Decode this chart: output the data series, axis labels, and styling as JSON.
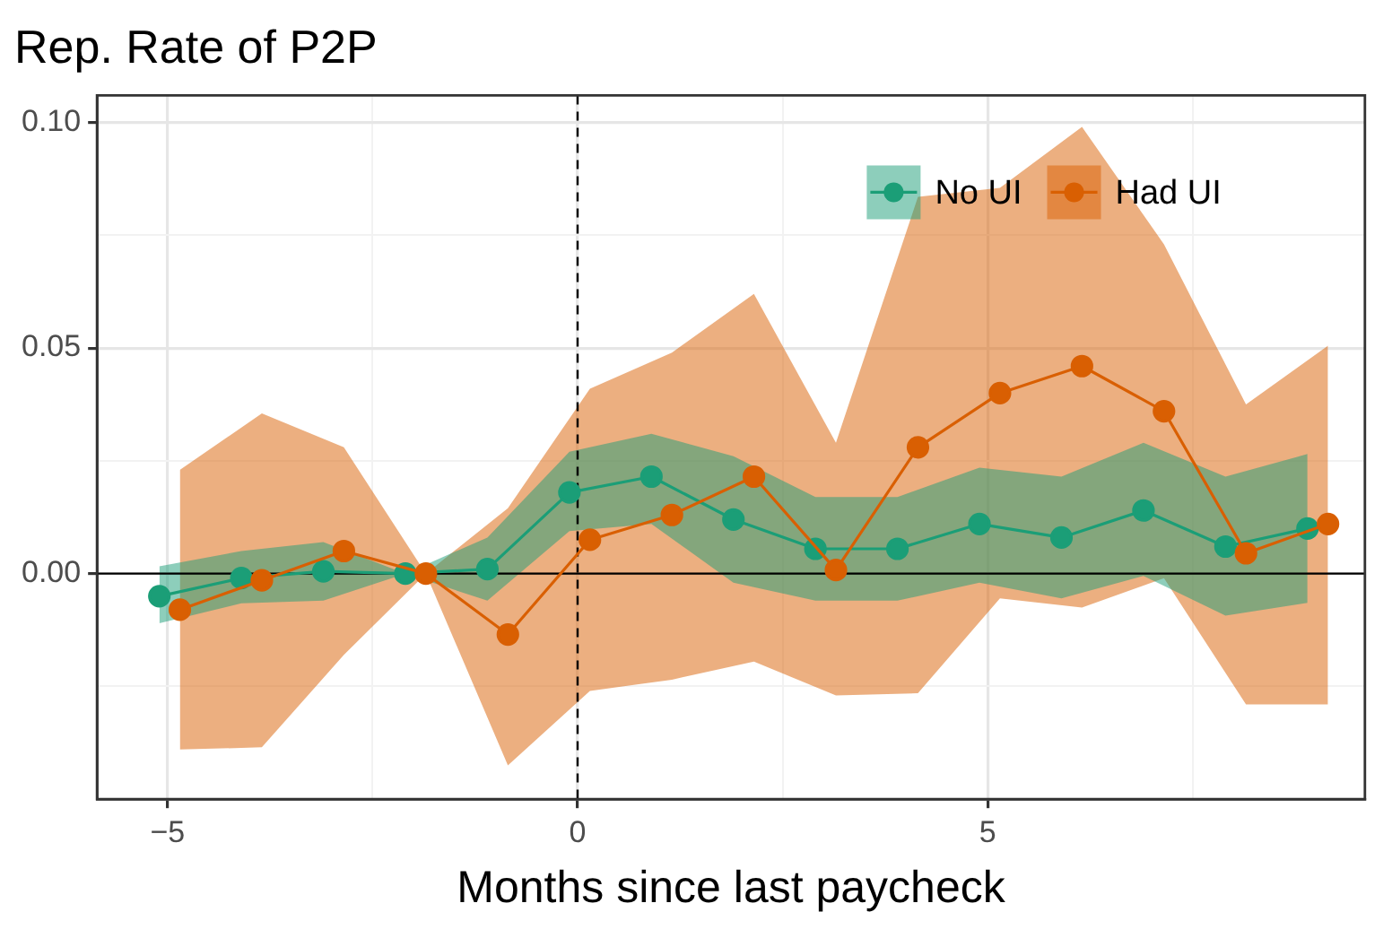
{
  "chart_data": {
    "type": "line",
    "title": "Rep. Rate of P2P",
    "xlabel": "Months since last paycheck",
    "xlim": [
      -5.86,
      9.6
    ],
    "ylim": [
      -0.05,
      0.106
    ],
    "xticks": [
      {
        "value": -5,
        "label": "−5"
      },
      {
        "value": -2.5,
        "label": null
      },
      0,
      {
        "value": 2.5,
        "label": null
      },
      5,
      {
        "value": 7.5,
        "label": null
      }
    ],
    "yticks": [
      {
        "value": -0.025,
        "label": null
      },
      {
        "value": 0,
        "label": "0.00"
      },
      {
        "value": 0.025,
        "label": null
      },
      {
        "value": 0.05,
        "label": "0.05"
      },
      {
        "value": 0.075,
        "label": null
      },
      {
        "value": 0.1,
        "label": "0.10"
      }
    ],
    "grid": true,
    "legend": "top right",
    "marker": "circle",
    "line_style": "solid",
    "ref_lines": [
      {
        "axis": "y",
        "value": 0,
        "color": "#000000",
        "line_style": "solid"
      },
      {
        "axis": "x",
        "value": 0,
        "color": "#000000",
        "line_style": "dashed"
      }
    ],
    "series": [
      {
        "name": "No UI",
        "color": "#1b9e77",
        "x": [
          -5.1,
          -4.1,
          -3.1,
          -2.1,
          -1.1,
          -0.1,
          0.9,
          1.9,
          2.9,
          3.9,
          4.9,
          5.9,
          6.9,
          7.9,
          8.9
        ],
        "values": [
          -0.005,
          -0.001,
          0.0005,
          0,
          0.001,
          0.018,
          0.0215,
          0.012,
          0.0055,
          0.0055,
          0.011,
          0.008,
          0.014,
          0.006,
          0.01
        ],
        "lower": [
          -0.011,
          -0.0066,
          -0.006,
          0,
          -0.006,
          0.0094,
          0.011,
          -0.002,
          -0.006,
          -0.006,
          -0.002,
          -0.0055,
          -0.0005,
          -0.0093,
          -0.0065
        ],
        "upper": [
          0.0016,
          0.005,
          0.007,
          0,
          0.008,
          0.027,
          0.031,
          0.026,
          0.017,
          0.017,
          0.0235,
          0.0215,
          0.029,
          0.0215,
          0.0265
        ]
      },
      {
        "name": "Had UI",
        "color": "#d95f02",
        "x": [
          -4.85,
          -3.85,
          -2.85,
          -1.85,
          -0.85,
          0.15,
          1.15,
          2.15,
          3.15,
          4.15,
          5.15,
          6.15,
          7.15,
          8.15,
          9.15
        ],
        "values": [
          -0.008,
          -0.0015,
          0.005,
          0,
          -0.0135,
          0.0075,
          0.013,
          0.0215,
          0.0008,
          0.028,
          0.04,
          0.046,
          0.036,
          0.0045,
          0.011
        ],
        "lower": [
          -0.039,
          -0.0385,
          -0.018,
          0,
          -0.0425,
          -0.026,
          -0.0235,
          -0.0195,
          -0.027,
          -0.0265,
          -0.0055,
          -0.0075,
          -0.001,
          -0.029,
          -0.029
        ],
        "upper": [
          0.023,
          0.0355,
          0.028,
          0,
          0.0145,
          0.041,
          0.049,
          0.062,
          0.029,
          0.0835,
          0.0855,
          0.099,
          0.073,
          0.0375,
          0.0505
        ]
      }
    ]
  }
}
